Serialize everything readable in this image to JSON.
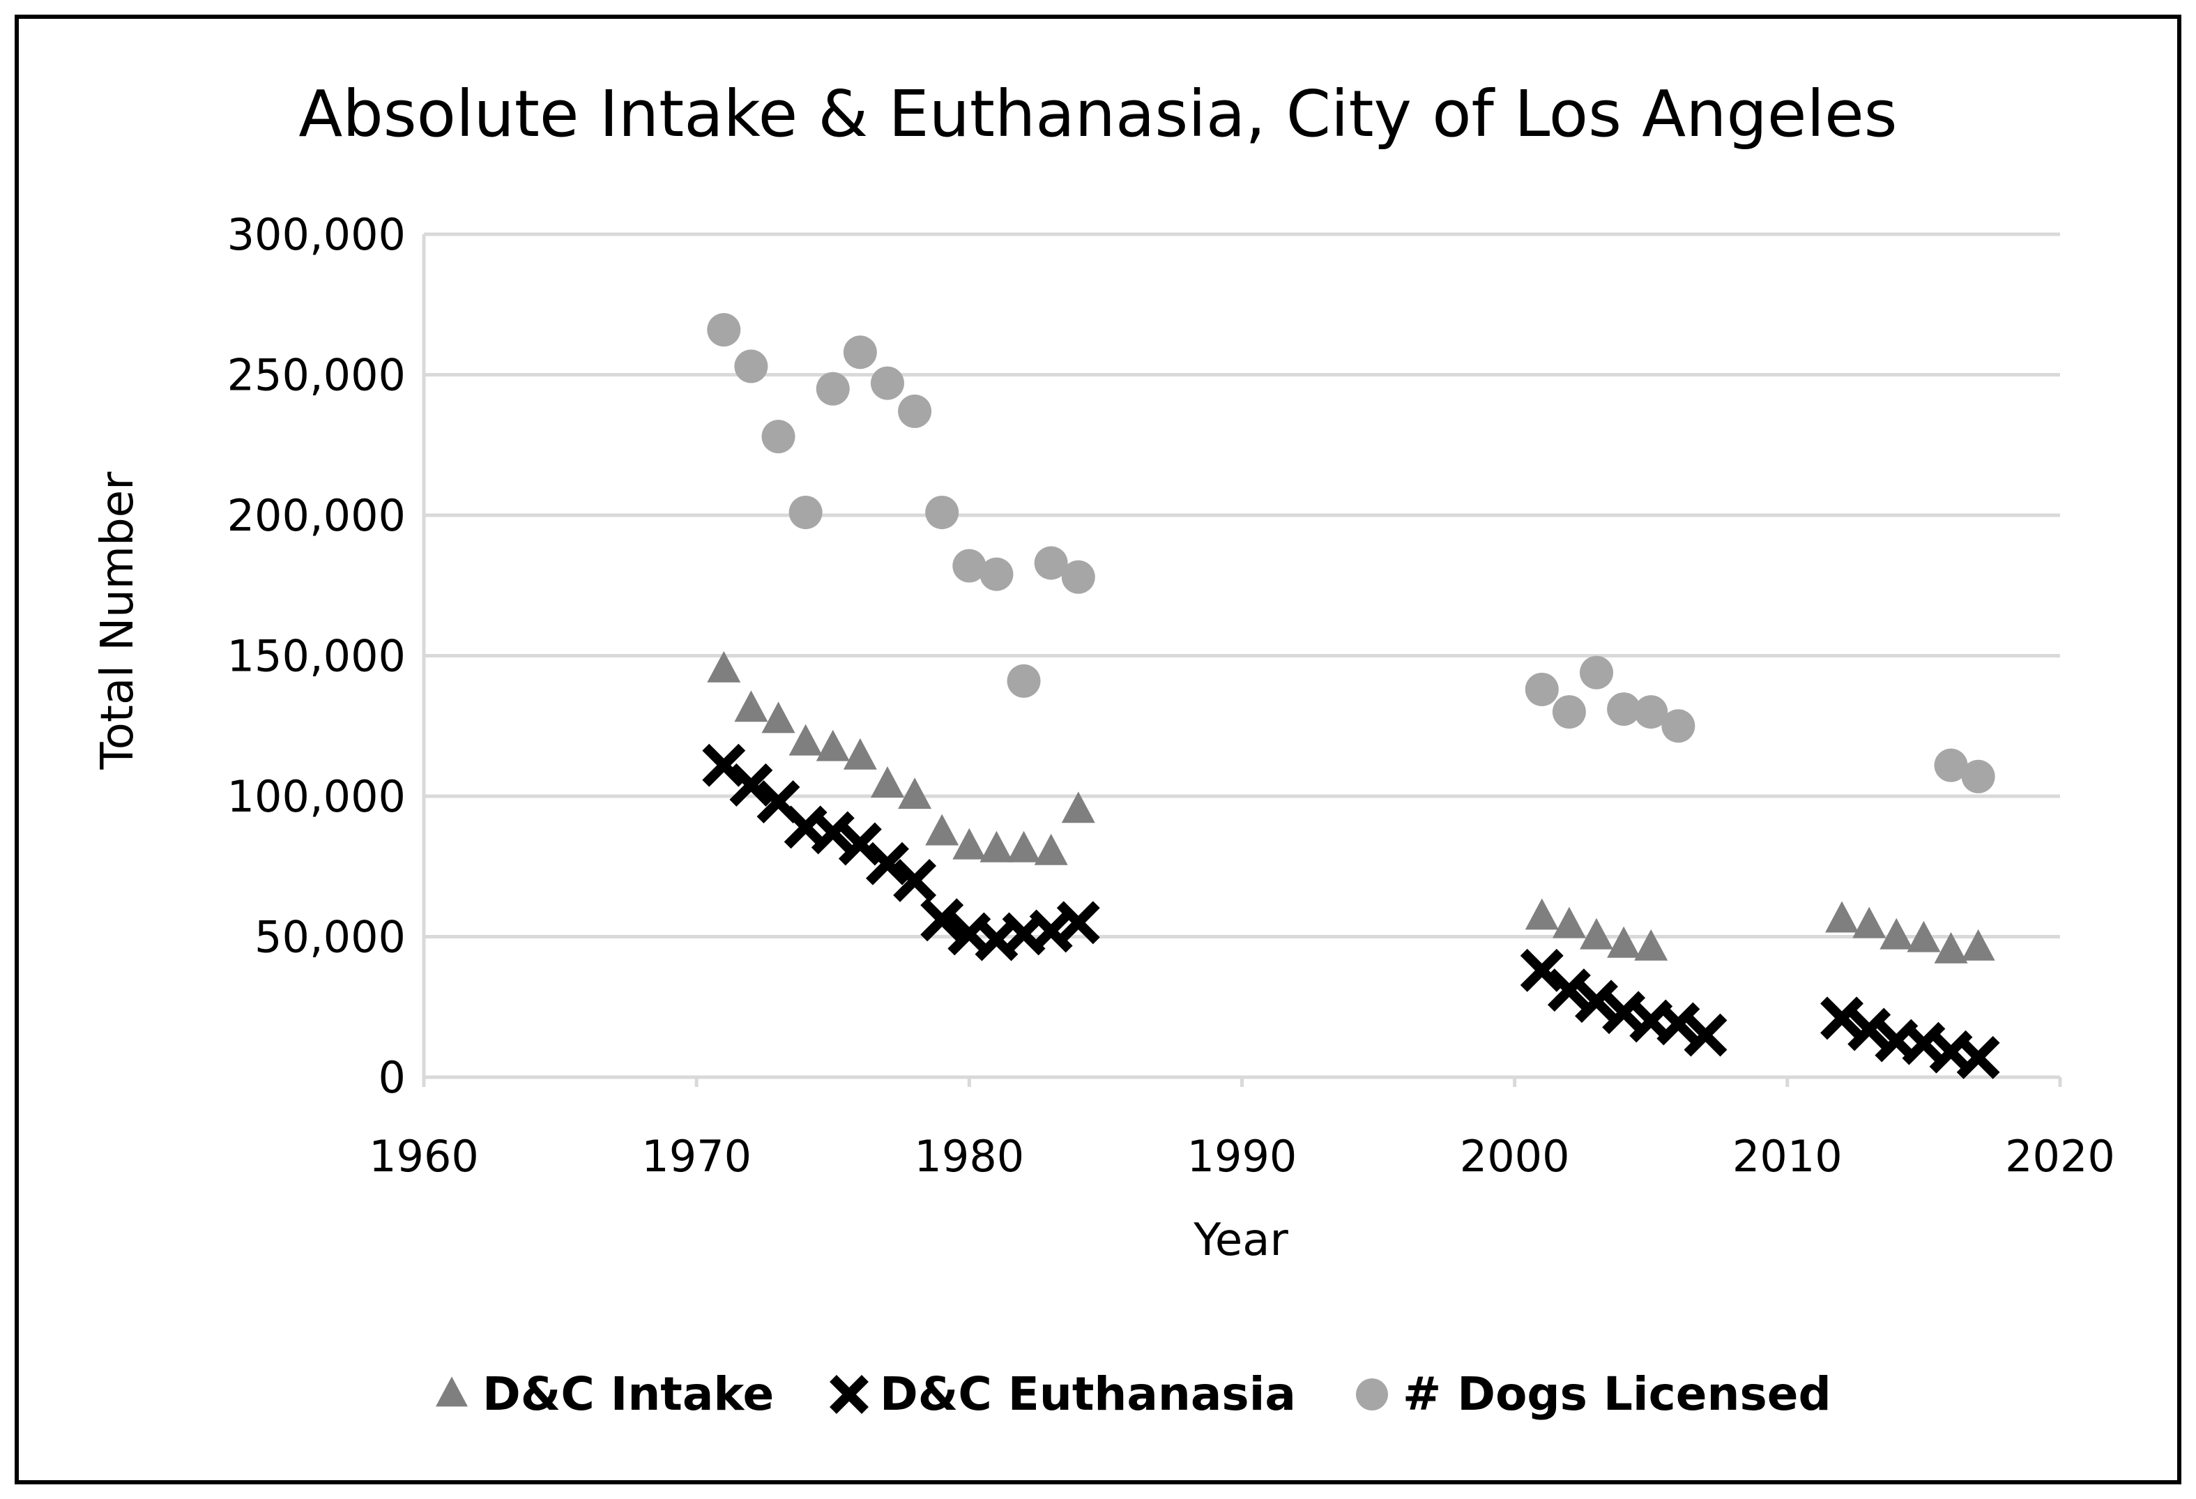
{
  "chart_data": {
    "type": "scatter",
    "title": "Absolute Intake & Euthanasia, City of Los Angeles",
    "xlabel": "Year",
    "ylabel": "Total Number",
    "xlim": [
      1960,
      2020
    ],
    "ylim": [
      0,
      300000
    ],
    "x_ticks": [
      1960,
      1970,
      1980,
      1990,
      2000,
      2010,
      2020
    ],
    "y_ticks": [
      0,
      50000,
      100000,
      150000,
      200000,
      250000,
      300000
    ],
    "x_tick_labels": [
      "1960",
      "1970",
      "1980",
      "1990",
      "2000",
      "2010",
      "2020"
    ],
    "y_tick_labels": [
      "0",
      "50,000",
      "100,000",
      "150,000",
      "200,000",
      "250,000",
      "300,000"
    ],
    "grid": "horizontal",
    "legend_position": "bottom",
    "series": [
      {
        "name": "D&C Intake",
        "marker": "triangle",
        "color": "#7f7f7f",
        "points": [
          [
            1971,
            145000
          ],
          [
            1972,
            131000
          ],
          [
            1973,
            127000
          ],
          [
            1974,
            119000
          ],
          [
            1975,
            117000
          ],
          [
            1976,
            114000
          ],
          [
            1977,
            104000
          ],
          [
            1978,
            100000
          ],
          [
            1979,
            87000
          ],
          [
            1980,
            82000
          ],
          [
            1981,
            81000
          ],
          [
            1982,
            81000
          ],
          [
            1983,
            80000
          ],
          [
            1984,
            95000
          ],
          [
            2001,
            57000
          ],
          [
            2002,
            54000
          ],
          [
            2003,
            50000
          ],
          [
            2004,
            47000
          ],
          [
            2005,
            46000
          ],
          [
            2012,
            56000
          ],
          [
            2013,
            54000
          ],
          [
            2014,
            50000
          ],
          [
            2015,
            49000
          ],
          [
            2016,
            45000
          ],
          [
            2017,
            46000
          ]
        ]
      },
      {
        "name": "D&C Euthanasia",
        "marker": "x",
        "color": "#000000",
        "points": [
          [
            1971,
            111000
          ],
          [
            1972,
            104000
          ],
          [
            1973,
            98000
          ],
          [
            1974,
            89000
          ],
          [
            1975,
            87000
          ],
          [
            1976,
            83000
          ],
          [
            1977,
            76000
          ],
          [
            1978,
            70000
          ],
          [
            1979,
            56000
          ],
          [
            1980,
            51000
          ],
          [
            1981,
            49000
          ],
          [
            1982,
            51000
          ],
          [
            1983,
            52000
          ],
          [
            1984,
            55000
          ],
          [
            2001,
            38000
          ],
          [
            2002,
            31000
          ],
          [
            2003,
            27000
          ],
          [
            2004,
            23000
          ],
          [
            2005,
            20000
          ],
          [
            2006,
            19000
          ],
          [
            2007,
            15000
          ],
          [
            2012,
            21000
          ],
          [
            2013,
            17000
          ],
          [
            2014,
            13000
          ],
          [
            2015,
            12000
          ],
          [
            2016,
            9000
          ],
          [
            2017,
            7000
          ]
        ]
      },
      {
        "name": "# Dogs Licensed",
        "marker": "circle",
        "color": "#a6a6a6",
        "points": [
          [
            1971,
            266000
          ],
          [
            1972,
            253000
          ],
          [
            1973,
            228000
          ],
          [
            1974,
            201000
          ],
          [
            1975,
            245000
          ],
          [
            1976,
            258000
          ],
          [
            1977,
            247000
          ],
          [
            1978,
            237000
          ],
          [
            1979,
            201000
          ],
          [
            1980,
            182000
          ],
          [
            1981,
            179000
          ],
          [
            1982,
            141000
          ],
          [
            1983,
            183000
          ],
          [
            1984,
            178000
          ],
          [
            2001,
            138000
          ],
          [
            2002,
            130000
          ],
          [
            2003,
            144000
          ],
          [
            2004,
            131000
          ],
          [
            2005,
            130000
          ],
          [
            2006,
            125000
          ],
          [
            2016,
            111000
          ],
          [
            2017,
            107000
          ]
        ]
      }
    ]
  }
}
